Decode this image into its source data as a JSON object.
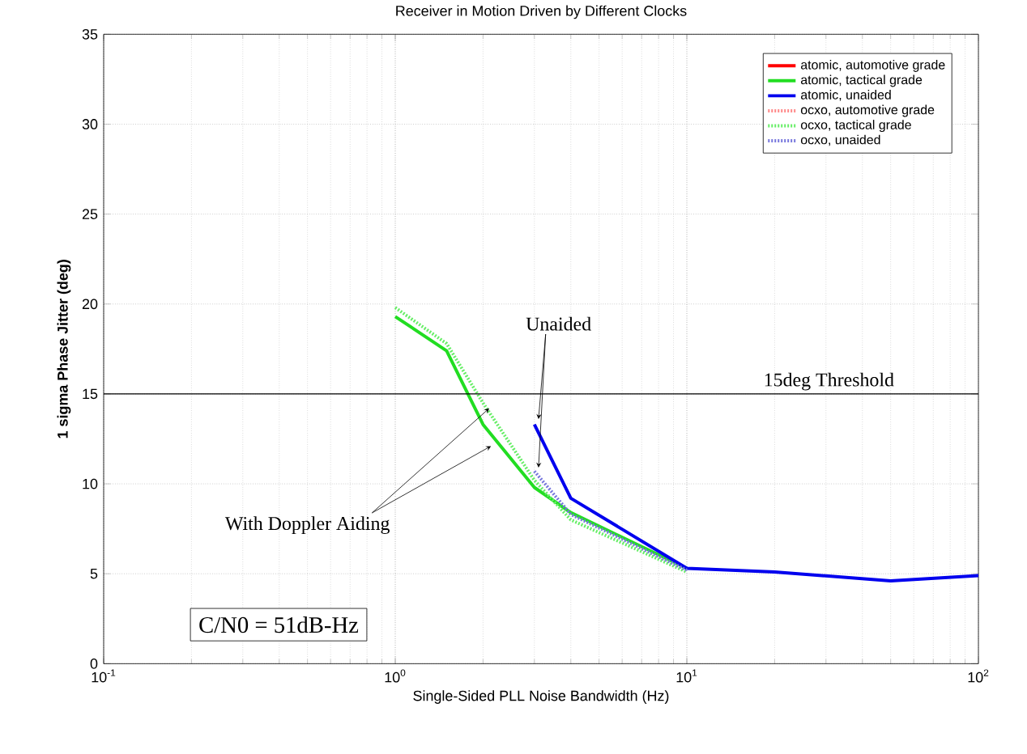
{
  "chart_data": {
    "type": "line",
    "title": "Receiver in Motion Driven by Different Clocks",
    "xlabel": "Single-Sided PLL Noise Bandwidth (Hz)",
    "ylabel": "1 sigma Phase Jitter (deg)",
    "log": "x",
    "grid": true,
    "legend": "top right",
    "xlim": [
      0.1,
      100
    ],
    "ylim": [
      0,
      35
    ],
    "xticks": [
      {
        "value": 0.1,
        "label": "10$^{-1}$"
      },
      {
        "value": 1,
        "label": "10$^{0}$"
      },
      {
        "value": 10,
        "label": "10$^{1}$"
      },
      {
        "value": 100,
        "label": "10$^{2}$"
      }
    ],
    "yticks": [
      0,
      5,
      10,
      15,
      20,
      25,
      30,
      35
    ],
    "series": [
      {
        "name": "atomic, automotive grade",
        "color": "#ff0000",
        "line_style": "solid",
        "values": [
          null
        ]
      },
      {
        "name": "atomic, tactical grade",
        "color": "#22dd22",
        "line_style": "solid",
        "x": [
          1,
          1.5,
          2,
          3,
          4,
          10
        ],
        "values": [
          19.3,
          17.4,
          13.3,
          9.8,
          8.4,
          5.3
        ]
      },
      {
        "name": "atomic, unaided",
        "color": "#0000ee",
        "line_style": "solid",
        "x": [
          3,
          4,
          10,
          20,
          50,
          100
        ],
        "values": [
          13.3,
          9.2,
          5.3,
          5.1,
          4.6,
          4.9
        ]
      },
      {
        "name": "ocxo, automotive grade",
        "color": "#ff8888",
        "line_style": "dotted",
        "values": [
          null
        ]
      },
      {
        "name": "ocxo, tactical grade",
        "color": "#66ee66",
        "line_style": "dotted",
        "x": [
          1,
          1.5,
          2,
          3,
          4,
          10
        ],
        "values": [
          19.8,
          17.8,
          14.5,
          10.2,
          8.0,
          5.1
        ]
      },
      {
        "name": "ocxo, unaided",
        "color": "#7777dd",
        "line_style": "dotted",
        "x": [
          3,
          4,
          10
        ],
        "values": [
          10.7,
          8.3,
          5.2
        ]
      }
    ],
    "ref_lines": [
      {
        "axis": "y",
        "value": 15,
        "label": "15deg Threshold",
        "color": "#000000"
      }
    ],
    "annotations": [
      "Unaided",
      {
        "text": "With Doppler Aiding",
        "x": 2.1,
        "y": 14.2
      },
      "C/N0 = 51dB-Hz"
    ]
  }
}
